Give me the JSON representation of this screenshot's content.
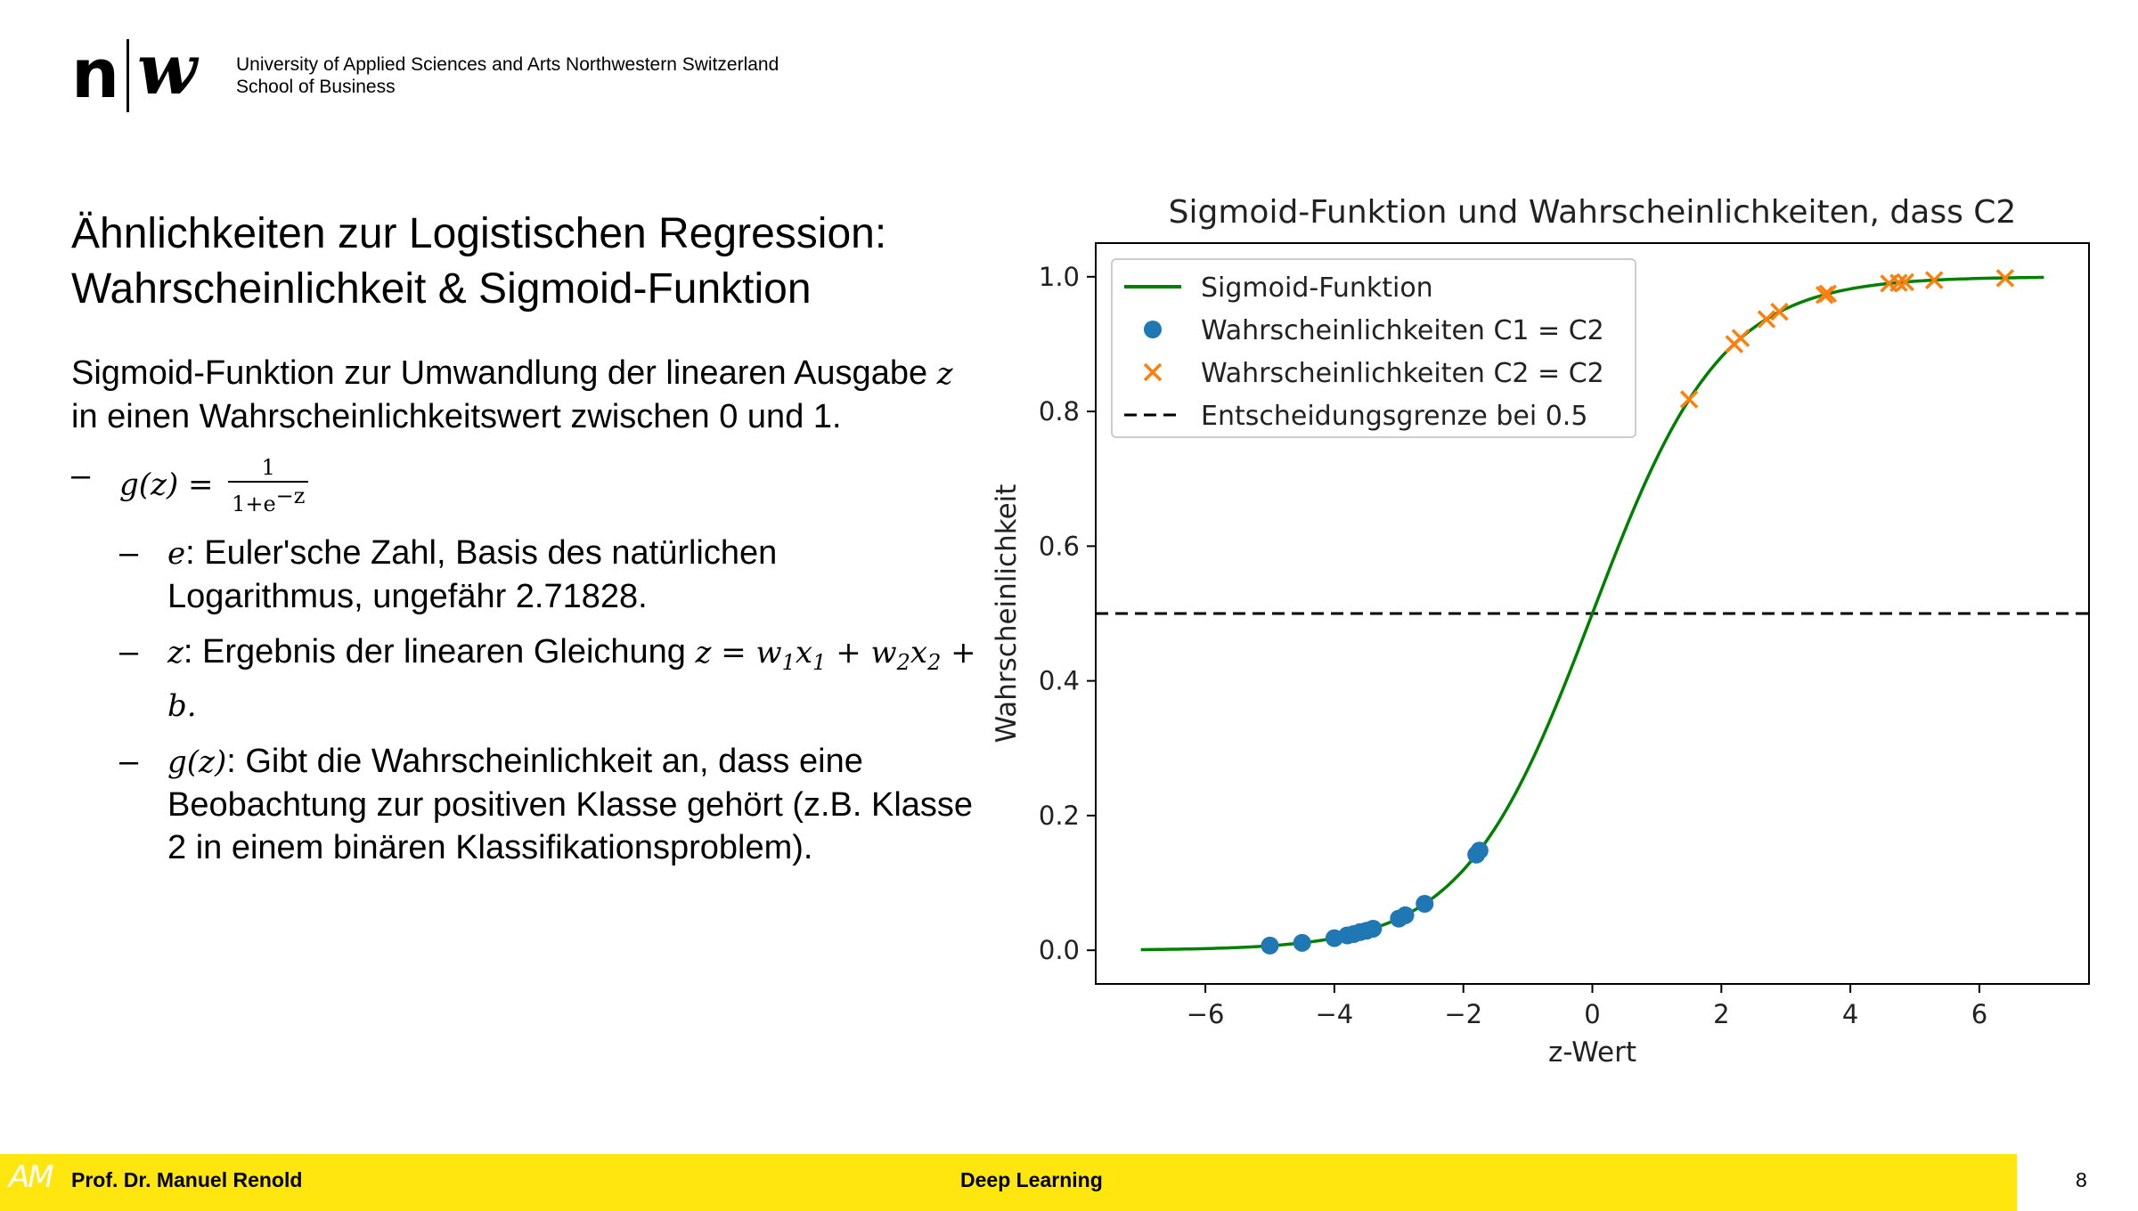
{
  "header": {
    "logo_n": "n",
    "logo_w": "w",
    "institution_line1": "University of Applied Sciences and Arts Northwestern Switzerland",
    "institution_line2": "School of Business"
  },
  "slide": {
    "title_line1": "Ähnlichkeiten zur Logistischen Regression:",
    "title_line2": "Wahrscheinlichkeit & Sigmoid-Funktion",
    "intro_a": "Sigmoid-Funktion zur Umwandlung der linearen Ausgabe",
    "intro_var": "z",
    "intro_b": "in einen Wahrscheinlichkeitswert zwischen 0 und 1.",
    "dash": "–",
    "formula_lhs": "g(z) =",
    "formula_num": "1",
    "formula_den": "1+e",
    "formula_exp": "−z",
    "e_var": "e",
    "e_text": ": Euler'sche Zahl, Basis des natürlichen Logarithmus, ungefähr 2.71828.",
    "z_var": "z",
    "z_text": ": Ergebnis der linearen Gleichung",
    "z_eq": "z = w",
    "z_x": "x",
    "z_plus": "+",
    "z_w2": "w",
    "z_x2": "x",
    "z_b": "+ b.",
    "sub1": "1",
    "sub2": "2",
    "g_var": "g(z)",
    "g_text": ": Gibt die Wahrscheinlichkeit an, dass eine Beobachtung zur positiven Klasse gehört (z.B. Klasse 2 in einem binären Klassifikationsproblem)."
  },
  "chart_data": {
    "type": "line",
    "title": "Sigmoid-Funktion und Wahrscheinlichkeiten, dass C2",
    "xlabel": "z-Wert",
    "ylabel": "Wahrscheinlichkeit",
    "xlim": [
      -7.7,
      7.7
    ],
    "ylim": [
      -0.05,
      1.05
    ],
    "xticks": [
      -6,
      -4,
      -2,
      0,
      2,
      4,
      6
    ],
    "xtick_labels": [
      "−6",
      "−4",
      "−2",
      "0",
      "2",
      "4",
      "6"
    ],
    "yticks": [
      0.0,
      0.2,
      0.4,
      0.6,
      0.8,
      1.0
    ],
    "ytick_labels": [
      "0.0",
      "0.2",
      "0.4",
      "0.6",
      "0.8",
      "1.0"
    ],
    "grid": false,
    "legend_position": "top-left",
    "colors": {
      "sigmoid": "#008000",
      "c1": "#1f77b4",
      "c2": "#ff7f0e",
      "boundary": "#000000"
    },
    "series": [
      {
        "name": "Sigmoid-Funktion",
        "kind": "line",
        "function": "1/(1+exp(-z))",
        "x_range": [
          -7,
          7
        ]
      },
      {
        "name": "Wahrscheinlichkeiten C1 = C2",
        "kind": "scatter-circle",
        "x": [
          -5.0,
          -4.5,
          -4.0,
          -3.8,
          -3.7,
          -3.6,
          -3.5,
          -3.4,
          -3.0,
          -2.9,
          -2.6,
          -1.8,
          -1.75
        ],
        "y": [
          0.007,
          0.011,
          0.018,
          0.022,
          0.024,
          0.027,
          0.029,
          0.032,
          0.047,
          0.052,
          0.069,
          0.142,
          0.148
        ]
      },
      {
        "name": "Wahrscheinlichkeiten C2 = C2",
        "kind": "scatter-x",
        "x": [
          1.5,
          2.2,
          2.3,
          2.7,
          2.9,
          3.6,
          3.65,
          4.6,
          4.75,
          4.85,
          5.3,
          6.4
        ],
        "y": [
          0.818,
          0.9,
          0.909,
          0.937,
          0.948,
          0.973,
          0.975,
          0.99,
          0.991,
          0.992,
          0.995,
          0.998
        ]
      },
      {
        "name": "Entscheidungsgrenze bei 0.5",
        "kind": "hline",
        "y": 0.5
      }
    ]
  },
  "footer": {
    "logo": "AM",
    "author": "Prof. Dr. Manuel Renold",
    "course": "Deep Learning",
    "page": "8"
  }
}
